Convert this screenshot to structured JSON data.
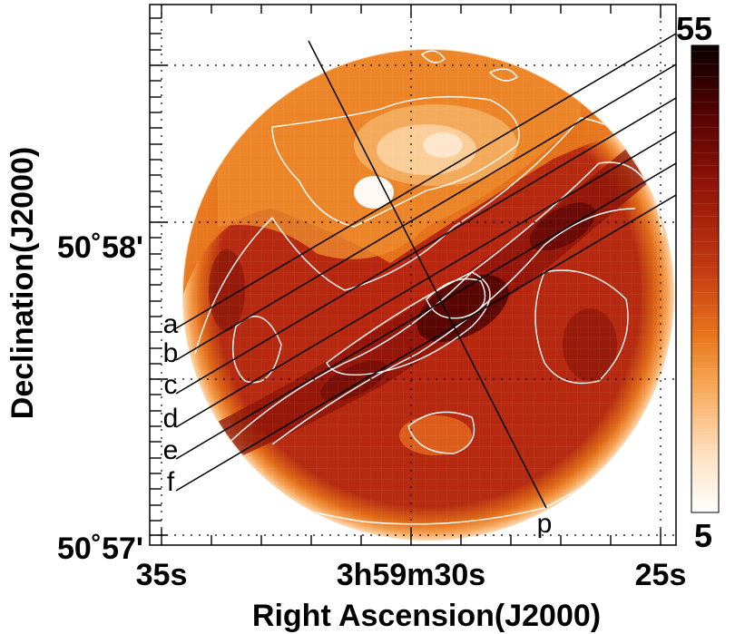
{
  "chart_data": {
    "type": "heatmap",
    "xlabel": "Right Ascension(J2000)",
    "ylabel": "Declination(J2000)",
    "x_ticks": [
      "35s",
      "3h59m30s",
      "25s"
    ],
    "y_ticks": [
      "50˚57'",
      "50˚58'"
    ],
    "colorbar": {
      "min": 5,
      "max": 55,
      "min_label": "5",
      "max_label": "55"
    },
    "cuts": [
      "a",
      "b",
      "c",
      "d",
      "e",
      "f",
      "p"
    ],
    "grid": true,
    "colors": {
      "hot": "#3a0000",
      "mid": "#a01810",
      "warm": "#e86a10",
      "pale": "#fbd6a8",
      "background": "#ffffff"
    }
  }
}
